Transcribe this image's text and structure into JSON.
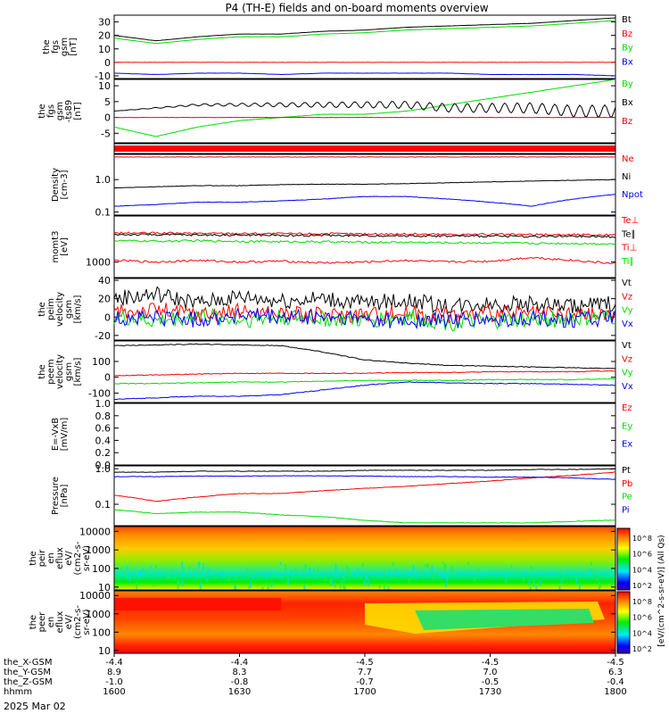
{
  "title": "P4 (TH-E) fields and on-board moments overview",
  "date_label": "2025 Mar 02",
  "colors": {
    "black": "#000000",
    "red": "#ff0000",
    "green": "#00dd00",
    "blue": "#0000ff"
  },
  "panels": [
    {
      "id": "fgs",
      "ylabel": [
        "the",
        "fgs",
        "gsm",
        "[nT]"
      ],
      "scale": "linear",
      "ylim": [
        -12,
        35
      ],
      "ticks": [
        {
          "v": 30,
          "label": "30"
        },
        {
          "v": 20,
          "label": "20"
        },
        {
          "v": 10,
          "label": "10"
        },
        {
          "v": 0,
          "label": "0"
        },
        {
          "v": -10,
          "label": "-10"
        }
      ],
      "legend": [
        {
          "text": "Bt",
          "color": "black"
        },
        {
          "text": "Bz",
          "color": "red"
        },
        {
          "text": "By",
          "color": "green"
        },
        {
          "text": "Bx",
          "color": "blue"
        }
      ]
    },
    {
      "id": "fgs_dsl",
      "ylabel": [
        "the",
        "fgs",
        "gsm",
        "-ts89",
        "[nT]"
      ],
      "scale": "linear",
      "ylim": [
        -8,
        12
      ],
      "ticks": [
        {
          "v": 10,
          "label": "10"
        },
        {
          "v": 5,
          "label": "5"
        },
        {
          "v": 0,
          "label": "0"
        },
        {
          "v": -5,
          "label": "-5"
        }
      ],
      "legend": [
        {
          "text": "By",
          "color": "green"
        },
        {
          "text": "Bx",
          "color": "black"
        },
        {
          "text": "Bz",
          "color": "red"
        }
      ]
    },
    {
      "id": "mode_bar",
      "ylabel": [],
      "scale": "linear",
      "ylim": [
        0,
        1
      ],
      "ticks": [],
      "legend": []
    },
    {
      "id": "density",
      "ylabel": [
        "Density",
        "[cm-3]"
      ],
      "scale": "log",
      "ylim": [
        0.08,
        6
      ],
      "ticks": [
        {
          "v": 1,
          "label": "1.0"
        },
        {
          "v": 0.1,
          "label": "0.1"
        }
      ],
      "legend": [
        {
          "text": "Ne",
          "color": "red"
        },
        {
          "text": "Ni",
          "color": "black"
        },
        {
          "text": "Npot",
          "color": "blue"
        }
      ]
    },
    {
      "id": "temp",
      "ylabel": [
        "momt3",
        "[eV]"
      ],
      "scale": "log",
      "ylim": [
        400,
        15000
      ],
      "ticks": [
        {
          "v": 1000,
          "label": "1000"
        }
      ],
      "legend": [
        {
          "text": "Te⊥",
          "color": "red"
        },
        {
          "text": "Te∥",
          "color": "black"
        },
        {
          "text": "Ti⊥",
          "color": "red"
        },
        {
          "text": "Ti∥",
          "color": "green"
        }
      ]
    },
    {
      "id": "peim",
      "ylabel": [
        "the",
        "peim",
        "velocity",
        "gsm",
        "[km/s]"
      ],
      "scale": "linear",
      "ylim": [
        -25,
        42
      ],
      "ticks": [
        {
          "v": 40,
          "label": "40"
        },
        {
          "v": 20,
          "label": "20"
        },
        {
          "v": 0,
          "label": "0"
        },
        {
          "v": -20,
          "label": "-20"
        }
      ],
      "legend": [
        {
          "text": "Vt",
          "color": "black"
        },
        {
          "text": "Vz",
          "color": "red"
        },
        {
          "text": "Vy",
          "color": "green"
        },
        {
          "text": "Vx",
          "color": "blue"
        }
      ]
    },
    {
      "id": "peem",
      "ylabel": [
        "the",
        "peem",
        "velocity",
        "gsm",
        "[km/s]"
      ],
      "scale": "linear",
      "ylim": [
        -160,
        230
      ],
      "ticks": [
        {
          "v": 100,
          "label": "100"
        },
        {
          "v": 0,
          "label": "0"
        },
        {
          "v": -100,
          "label": "-100"
        }
      ],
      "legend": [
        {
          "text": "Vt",
          "color": "black"
        },
        {
          "text": "Vz",
          "color": "red"
        },
        {
          "text": "Vy",
          "color": "green"
        },
        {
          "text": "Vx",
          "color": "blue"
        }
      ]
    },
    {
      "id": "efield",
      "ylabel": [
        "E=-VxB",
        "[mV/m]"
      ],
      "scale": "linear",
      "ylim": [
        0,
        1
      ],
      "ticks": [
        {
          "v": 1.0,
          "label": "1.0"
        },
        {
          "v": 0.8,
          "label": "0.8"
        },
        {
          "v": 0.6,
          "label": "0.6"
        },
        {
          "v": 0.4,
          "label": "0.4"
        },
        {
          "v": 0.2,
          "label": "0.2"
        },
        {
          "v": 0.0,
          "label": "0.0"
        }
      ],
      "legend": [
        {
          "text": "Ez",
          "color": "red"
        },
        {
          "text": "Ey",
          "color": "green"
        },
        {
          "text": "Ex",
          "color": "blue"
        }
      ]
    },
    {
      "id": "pressure",
      "ylabel": [
        "Pressure",
        "[nPa]"
      ],
      "scale": "log",
      "ylim": [
        0.025,
        1.2
      ],
      "ticks": [
        {
          "v": 1,
          "label": "1.0"
        },
        {
          "v": 0.1,
          "label": "0.1"
        }
      ],
      "legend": [
        {
          "text": "Pt",
          "color": "black"
        },
        {
          "text": "Pb",
          "color": "red"
        },
        {
          "text": "Pe",
          "color": "green"
        },
        {
          "text": "Pi",
          "color": "blue"
        }
      ]
    },
    {
      "id": "peir",
      "ylabel": [
        "the",
        "peir",
        "en",
        "eflux",
        "eV/",
        "(cm2-s-",
        "sr-eV)"
      ],
      "scale": "log",
      "ylim": [
        7,
        18000
      ],
      "ticks": [
        {
          "v": 10000,
          "label": "10000"
        },
        {
          "v": 1000,
          "label": "1000"
        },
        {
          "v": 100,
          "label": "100"
        },
        {
          "v": 10,
          "label": "10"
        }
      ],
      "legend": []
    },
    {
      "id": "peer",
      "ylabel": [
        "the",
        "peer",
        "en",
        "eflux",
        "eV/",
        "(cm2-s-",
        "sr-eV)"
      ],
      "scale": "log",
      "ylim": [
        7,
        18000
      ],
      "ticks": [
        {
          "v": 10000,
          "label": "10000"
        },
        {
          "v": 1000,
          "label": "1000"
        },
        {
          "v": 100,
          "label": "100"
        },
        {
          "v": 10,
          "label": "10"
        }
      ],
      "legend": []
    }
  ],
  "colorbar": {
    "label": "[eV/(cm^2-s-sr-eV)] (All Qs)",
    "ticks": [
      {
        "label": "10^8"
      },
      {
        "label": "10^6"
      },
      {
        "label": "10^4"
      },
      {
        "label": "10^2"
      }
    ]
  },
  "xaxis": {
    "row_labels": [
      "the_X-GSM",
      "the_Y-GSM",
      "the_Z-GSM",
      "hhmm"
    ],
    "columns": [
      {
        "x": -4.4,
        "y": 8.9,
        "z": -1.0,
        "hhmm": "1600"
      },
      {
        "x": -4.4,
        "y": 8.3,
        "z": -0.8,
        "hhmm": "1630"
      },
      {
        "x": -4.5,
        "y": 7.7,
        "z": -0.7,
        "hhmm": "1700"
      },
      {
        "x": -4.5,
        "y": 7.0,
        "z": -0.5,
        "hhmm": "1730"
      },
      {
        "x": -4.5,
        "y": 6.3,
        "z": -0.4,
        "hhmm": "1800"
      }
    ]
  },
  "chart_data": {
    "type": "line",
    "title": "P4 (TH-E) fields and on-board moments overview",
    "x_unit": "hhmm",
    "x": [
      1600,
      1610,
      1620,
      1630,
      1640,
      1650,
      1700,
      1710,
      1720,
      1730,
      1740,
      1750,
      1800
    ],
    "panels": {
      "fgs": {
        "series": [
          {
            "name": "Bt",
            "color": "black",
            "values": [
              20,
              16,
              19,
              21,
              21,
              23,
              24,
              26,
              27,
              28,
              29,
              31,
              33
            ]
          },
          {
            "name": "Bz",
            "color": "red",
            "values": [
              0,
              0,
              0,
              0,
              0,
              0,
              0,
              0,
              0,
              0,
              0,
              0,
              0
            ]
          },
          {
            "name": "By",
            "color": "green",
            "values": [
              18,
              14,
              17,
              19,
              19,
              21,
              22,
              24,
              25,
              26,
              27,
              29,
              31
            ]
          },
          {
            "name": "Bx",
            "color": "blue",
            "values": [
              -8,
              -9,
              -8,
              -8,
              -9,
              -8,
              -8,
              -8,
              -8,
              -9,
              -9,
              -9,
              -10
            ]
          }
        ]
      },
      "fgs_dsl": {
        "series": [
          {
            "name": "By",
            "color": "green",
            "values": [
              -3,
              -6,
              -3,
              -1,
              0,
              1,
              1,
              2,
              4,
              6,
              8,
              10,
              12
            ]
          },
          {
            "name": "Bx",
            "color": "black",
            "values": [
              2,
              3,
              4,
              4,
              4,
              4,
              4,
              4,
              3,
              3,
              3,
              2,
              2
            ]
          },
          {
            "name": "Bz",
            "color": "red",
            "values": [
              0,
              0,
              0,
              0,
              0,
              0,
              0,
              0,
              0,
              0,
              0,
              0,
              0
            ]
          }
        ]
      },
      "density": {
        "series": [
          {
            "name": "Ne",
            "color": "red",
            "values": [
              5,
              5,
              5,
              5,
              5,
              5,
              5,
              5,
              5,
              5,
              5,
              5,
              5
            ]
          },
          {
            "name": "Ni",
            "color": "black",
            "values": [
              0.55,
              0.6,
              0.65,
              0.65,
              0.7,
              0.72,
              0.72,
              0.75,
              0.8,
              0.85,
              0.9,
              0.95,
              1.0
            ]
          },
          {
            "name": "Npot",
            "color": "blue",
            "values": [
              0.15,
              0.17,
              0.2,
              0.2,
              0.22,
              0.25,
              0.3,
              0.3,
              0.25,
              0.2,
              0.15,
              0.25,
              0.35
            ]
          }
        ]
      },
      "temp": {
        "series": [
          {
            "name": "Te⊥",
            "color": "red",
            "values": [
              5500,
              5500,
              5400,
              5400,
              5300,
              5300,
              5200,
              5200,
              5100,
              5100,
              5000,
              5000,
              4900
            ]
          },
          {
            "name": "Te∥",
            "color": "black",
            "values": [
              5000,
              5000,
              4900,
              4900,
              4800,
              4800,
              4700,
              4700,
              4600,
              4600,
              4500,
              4500,
              4400
            ]
          },
          {
            "name": "Ti⊥",
            "color": "red",
            "values": [
              1100,
              1000,
              1100,
              1000,
              1050,
              950,
              1000,
              1100,
              1000,
              1050,
              1300,
              1100,
              900
            ]
          },
          {
            "name": "Ti∥",
            "color": "green",
            "values": [
              3500,
              3400,
              3500,
              3400,
              3300,
              3300,
              3200,
              3200,
              3100,
              3100,
              3000,
              3000,
              2900
            ]
          }
        ]
      },
      "peim": {
        "series": [
          {
            "name": "Vt",
            "color": "black",
            "values": [
              20,
              25,
              15,
              22,
              18,
              20,
              15,
              18,
              12,
              15,
              14,
              12,
              15
            ]
          },
          {
            "name": "Vz",
            "color": "red",
            "values": [
              5,
              8,
              3,
              6,
              4,
              2,
              3,
              5,
              2,
              4,
              3,
              2,
              3
            ]
          },
          {
            "name": "Vy",
            "color": "green",
            "values": [
              0,
              -5,
              2,
              -3,
              0,
              -2,
              -4,
              0,
              -6,
              -5,
              -3,
              -2,
              -1
            ]
          },
          {
            "name": "Vx",
            "color": "blue",
            "values": [
              -2,
              0,
              -3,
              2,
              -1,
              0,
              -2,
              -5,
              -3,
              -4,
              -2,
              -3,
              -1
            ]
          }
        ]
      },
      "peem": {
        "series": [
          {
            "name": "Vt",
            "color": "black",
            "values": [
              200,
              205,
              210,
              205,
              200,
              160,
              110,
              90,
              75,
              70,
              65,
              60,
              55
            ]
          },
          {
            "name": "Vz",
            "color": "red",
            "values": [
              10,
              15,
              20,
              25,
              25,
              25,
              25,
              30,
              30,
              35,
              35,
              35,
              40
            ]
          },
          {
            "name": "Vy",
            "color": "green",
            "values": [
              -40,
              -40,
              -35,
              -30,
              -30,
              -25,
              -20,
              -20,
              -20,
              -15,
              -15,
              -15,
              -10
            ]
          },
          {
            "name": "Vx",
            "color": "blue",
            "values": [
              -140,
              -130,
              -120,
              -120,
              -110,
              -80,
              -50,
              -30,
              -35,
              -40,
              -40,
              -45,
              -50
            ]
          }
        ]
      },
      "efield": {
        "series": [
          {
            "name": "Ez",
            "color": "red",
            "values": []
          },
          {
            "name": "Ey",
            "color": "green",
            "values": []
          },
          {
            "name": "Ex",
            "color": "blue",
            "values": []
          }
        ]
      },
      "pressure": {
        "series": [
          {
            "name": "Pt",
            "color": "black",
            "values": [
              0.8,
              0.8,
              0.85,
              0.85,
              0.85,
              0.85,
              0.9,
              0.9,
              0.9,
              0.9,
              0.95,
              0.95,
              1.0
            ]
          },
          {
            "name": "Pb",
            "color": "red",
            "values": [
              0.18,
              0.12,
              0.16,
              0.2,
              0.2,
              0.24,
              0.28,
              0.32,
              0.38,
              0.45,
              0.55,
              0.65,
              0.8
            ]
          },
          {
            "name": "Pe",
            "color": "green",
            "values": [
              0.07,
              0.055,
              0.06,
              0.06,
              0.05,
              0.045,
              0.035,
              0.03,
              0.03,
              0.03,
              0.03,
              0.033,
              0.036
            ]
          },
          {
            "name": "Pi",
            "color": "blue",
            "values": [
              0.6,
              0.6,
              0.62,
              0.62,
              0.63,
              0.63,
              0.62,
              0.6,
              0.6,
              0.58,
              0.58,
              0.55,
              0.5
            ]
          }
        ]
      }
    }
  }
}
